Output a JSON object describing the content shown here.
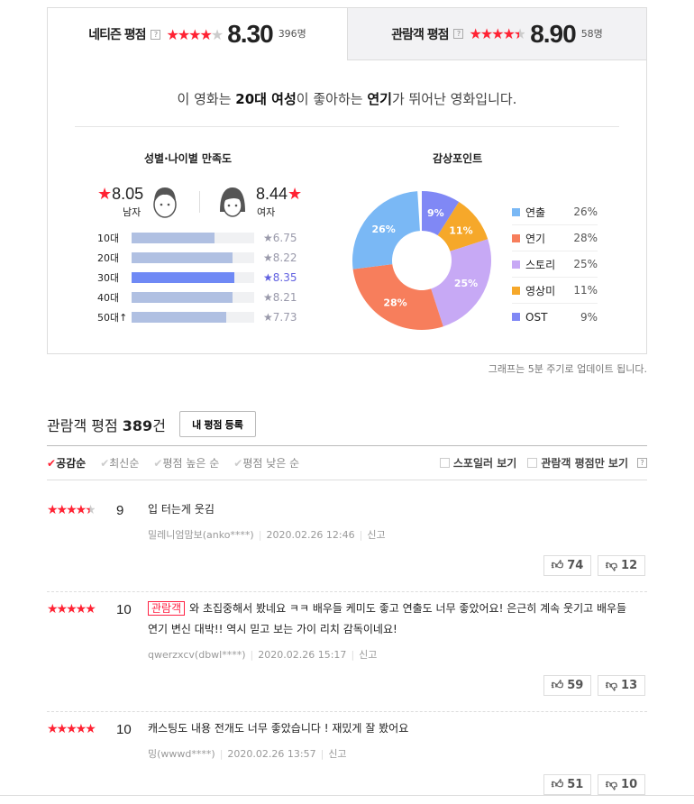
{
  "tabs": [
    {
      "label": "네티즌 평점",
      "help": "?",
      "score": "8.30",
      "count": "396명",
      "stars": 4.15
    },
    {
      "label": "관람객 평점",
      "help": "?",
      "score": "8.90",
      "count": "58명",
      "stars": 4.45
    }
  ],
  "summary": {
    "pre": "이 영화는 ",
    "group": "20대 여성",
    "mid": "이 좋아하는 ",
    "aspect": "연기",
    "post": "가 뛰어난 영화입니다."
  },
  "gender_age": {
    "title": "성별·나이별 만족도",
    "male": {
      "score": "8.05",
      "label": "남자"
    },
    "female": {
      "score": "8.44",
      "label": "여자"
    },
    "ages": [
      {
        "label": "10대",
        "value": "6.75"
      },
      {
        "label": "20대",
        "value": "8.22"
      },
      {
        "label": "30대",
        "value": "8.35",
        "highlight": true
      },
      {
        "label": "40대",
        "value": "8.21"
      },
      {
        "label": "50대↑",
        "value": "7.73"
      }
    ]
  },
  "points": {
    "title": "감상포인트",
    "items": [
      {
        "label": "연출",
        "pct": 26,
        "pct_text": "26%",
        "color": "#7ab8f5"
      },
      {
        "label": "연기",
        "pct": 28,
        "pct_text": "28%",
        "color": "#f77e5c"
      },
      {
        "label": "스토리",
        "pct": 25,
        "pct_text": "25%",
        "color": "#c7a9f5"
      },
      {
        "label": "영상미",
        "pct": 11,
        "pct_text": "11%",
        "color": "#f6a82a"
      },
      {
        "label": "OST",
        "pct": 9,
        "pct_text": "9%",
        "color": "#8088f5"
      }
    ]
  },
  "update_note": "그래프는 5분 주기로 업데이트 됩니다.",
  "list": {
    "title": "관람객 평점 ",
    "count": "389",
    "unit": "건",
    "register": "내 평점 등록",
    "sorts": [
      "공감순",
      "최신순",
      "평점 높은 순",
      "평점 낮은 순"
    ],
    "filters": [
      "스포일러 보기",
      "관람객 평점만 보기"
    ],
    "help": "?"
  },
  "reviews": [
    {
      "stars": 4.5,
      "score": "9",
      "badge": "",
      "text": "입 터는게 웃김",
      "user": "밀레니엄맘보(anko****)",
      "date": "2020.02.26 12:46",
      "report": "신고",
      "up": "74",
      "down": "12"
    },
    {
      "stars": 5,
      "score": "10",
      "badge": "관람객",
      "text": "와 초집중해서 봤네요 ㅋㅋ 배우들 케미도 좋고 연출도 너무 좋았어요! 은근히 계속 웃기고 배우들 연기 변신 대박!! 역시 믿고 보는 가이 리치 감독이네요!",
      "user": "qwerzxcv(dbwl****)",
      "date": "2020.02.26 15:17",
      "report": "신고",
      "up": "59",
      "down": "13"
    },
    {
      "stars": 5,
      "score": "10",
      "badge": "",
      "text": "캐스팅도 내용 전개도 너무 좋았습니다 ! 재밌게 잘 봤어요",
      "user": "밍(wwwd****)",
      "date": "2020.02.26 13:57",
      "report": "신고",
      "up": "51",
      "down": "10"
    }
  ]
}
